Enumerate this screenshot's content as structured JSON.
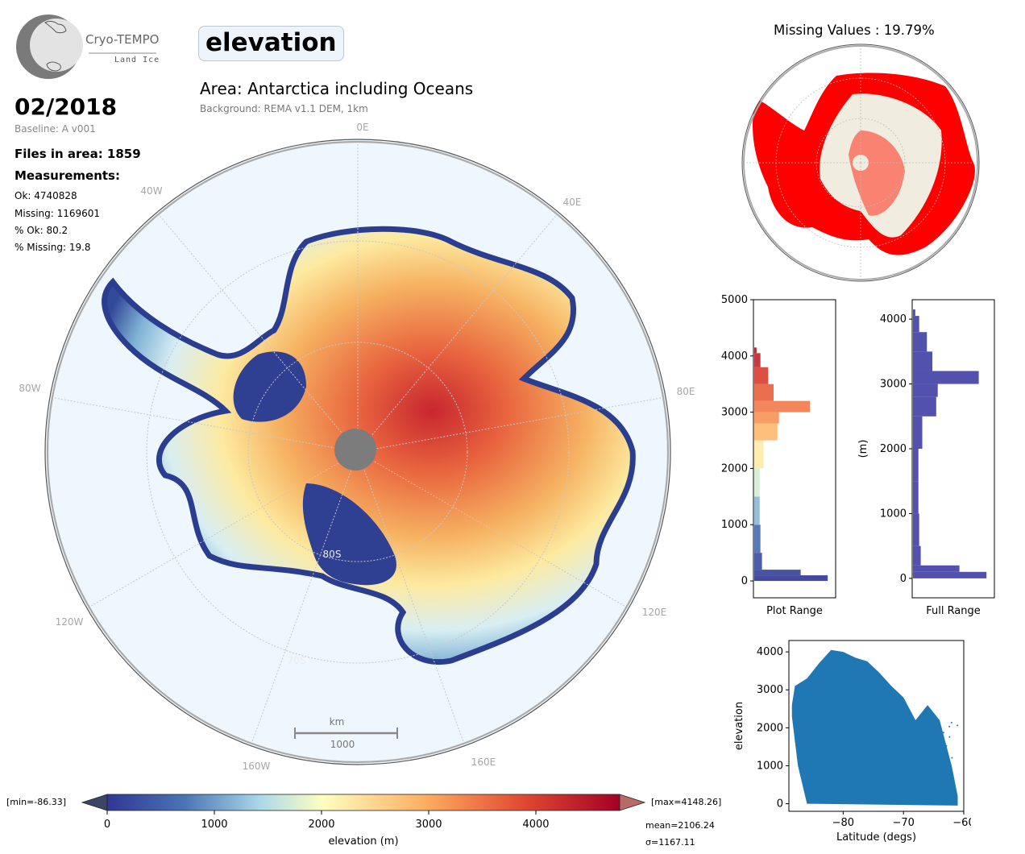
{
  "header": {
    "logo_name": "Cryo-TEMPO",
    "logo_sub": "Land Ice",
    "parameter": "elevation",
    "area_title": "Area: Antarctica including Oceans",
    "background_note": "Background: REMA v1.1 DEM, 1km"
  },
  "info": {
    "date": "02/2018",
    "baseline": "Baseline: A v001",
    "files_in_area": "Files in area: 1859",
    "measurements_title": "Measurements:",
    "ok": "Ok: 4740828",
    "missing": "Missing: 1169601",
    "pct_ok": "% Ok: 80.2",
    "pct_missing": "% Missing: 19.8"
  },
  "map": {
    "lon_labels": [
      "0E",
      "40E",
      "80E",
      "120E",
      "160E",
      "160W",
      "120W",
      "80W",
      "40W"
    ],
    "lat_labels": [
      "80S",
      "70S"
    ],
    "scalebar_unit": "km",
    "scalebar_value": "1000"
  },
  "missing_map": {
    "title": "Missing Values : 19.79%"
  },
  "colorbar": {
    "min_label": "[min=-86.33]",
    "max_label": "[max=4148.26]",
    "ticks": [
      "0",
      "1000",
      "2000",
      "3000",
      "4000"
    ],
    "label": "elevation (m)",
    "mean": "mean=2106.24",
    "sigma": "σ=1167.11"
  },
  "chart_data": [
    {
      "type": "bar",
      "orientation": "horizontal",
      "title": "",
      "xlabel": "Plot Range",
      "ylabel": "",
      "ylim": [
        -300,
        5000
      ],
      "yticks": [
        "0",
        "1000",
        "2000",
        "3000",
        "4000",
        "5000"
      ],
      "bins": [
        {
          "y": 0,
          "v": 0.95
        },
        {
          "y": 100,
          "v": 0.6
        },
        {
          "y": 200,
          "v": 0.1
        },
        {
          "y": 500,
          "v": 0.08
        },
        {
          "y": 1000,
          "v": 0.07
        },
        {
          "y": 1500,
          "v": 0.07
        },
        {
          "y": 2000,
          "v": 0.12
        },
        {
          "y": 2500,
          "v": 0.3
        },
        {
          "y": 2800,
          "v": 0.32
        },
        {
          "y": 3000,
          "v": 0.72
        },
        {
          "y": 3200,
          "v": 0.25
        },
        {
          "y": 3500,
          "v": 0.18
        },
        {
          "y": 3800,
          "v": 0.08
        },
        {
          "y": 4050,
          "v": 0.03
        }
      ]
    },
    {
      "type": "bar",
      "orientation": "horizontal",
      "title": "",
      "xlabel": "Full Range",
      "ylabel": "(m)",
      "ylim": [
        -300,
        4300
      ],
      "yticks": [
        "0",
        "1000",
        "2000",
        "3000",
        "4000"
      ],
      "bins": [
        {
          "y": 0,
          "v": 0.95
        },
        {
          "y": 100,
          "v": 0.6
        },
        {
          "y": 200,
          "v": 0.1
        },
        {
          "y": 500,
          "v": 0.08
        },
        {
          "y": 1000,
          "v": 0.07
        },
        {
          "y": 1500,
          "v": 0.07
        },
        {
          "y": 2000,
          "v": 0.12
        },
        {
          "y": 2500,
          "v": 0.3
        },
        {
          "y": 2800,
          "v": 0.32
        },
        {
          "y": 3000,
          "v": 0.85
        },
        {
          "y": 3200,
          "v": 0.25
        },
        {
          "y": 3500,
          "v": 0.18
        },
        {
          "y": 3800,
          "v": 0.08
        },
        {
          "y": 4050,
          "v": 0.03
        }
      ]
    },
    {
      "type": "scatter",
      "title": "",
      "xlabel": "Latitude (degs)",
      "ylabel": "elevation",
      "xlim": [
        -89,
        -60
      ],
      "ylim": [
        -200,
        4300
      ],
      "xticks": [
        "−80",
        "−70",
        "−60"
      ],
      "yticks": [
        "0",
        "1000",
        "2000",
        "3000",
        "4000"
      ],
      "envelope_upper": [
        {
          "x": -88.5,
          "y": 2600
        },
        {
          "x": -88,
          "y": 3100
        },
        {
          "x": -86,
          "y": 3300
        },
        {
          "x": -84,
          "y": 3700
        },
        {
          "x": -82,
          "y": 4050
        },
        {
          "x": -80,
          "y": 4000
        },
        {
          "x": -78,
          "y": 3850
        },
        {
          "x": -76,
          "y": 3750
        },
        {
          "x": -74,
          "y": 3450
        },
        {
          "x": -72,
          "y": 3100
        },
        {
          "x": -70,
          "y": 2800
        },
        {
          "x": -68,
          "y": 2200
        },
        {
          "x": -66,
          "y": 2600
        },
        {
          "x": -64,
          "y": 2200
        },
        {
          "x": -62,
          "y": 1000
        },
        {
          "x": -61,
          "y": 200
        }
      ],
      "envelope_lower": [
        {
          "x": -88.5,
          "y": 2300
        },
        {
          "x": -87.5,
          "y": 1000
        },
        {
          "x": -86,
          "y": 0
        },
        {
          "x": -61,
          "y": -50
        }
      ]
    }
  ]
}
